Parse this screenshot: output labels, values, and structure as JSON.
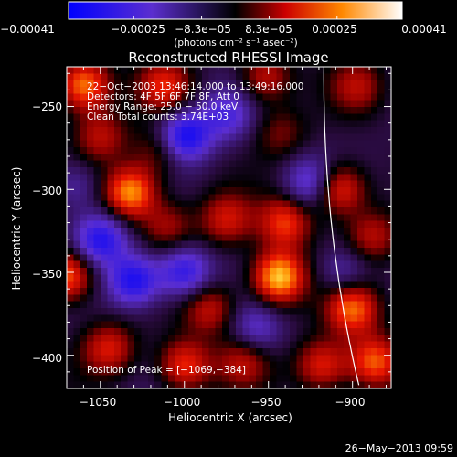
{
  "chart_data": {
    "type": "heatmap",
    "title": "Reconstructed RHESSI Image",
    "xlabel": "Heliocentric X (arcsec)",
    "ylabel": "Heliocentric Y (arcsec)",
    "xlim": [
      -1070,
      -877
    ],
    "ylim": [
      -420,
      -226
    ],
    "x_ticks": [
      -1050,
      -1000,
      -950,
      -900
    ],
    "x_tick_labels": [
      "−1050",
      "−1000",
      "−950",
      "−900"
    ],
    "y_ticks": [
      -250,
      -300,
      -350,
      -400
    ],
    "y_tick_labels": [
      "−250",
      "−300",
      "−350",
      "−400"
    ],
    "colorbar": {
      "range": [
        -0.00041,
        0.00041
      ],
      "tick_labels": [
        "−0.00041",
        "−0.00025",
        "−8.3e−05",
        "8.3e−05",
        "0.00025",
        "0.00041"
      ],
      "unit_label": "(photons cm⁻² s⁻¹ asec⁻²)",
      "colors": [
        "#0000ff",
        "#5b2ecf",
        "#000000",
        "#cc0000",
        "#ff8800",
        "#ffffff"
      ]
    },
    "info_lines": [
      "22−Oct−2003 13:46:14.000 to 13:49:16.000",
      "Detectors: 4F 5F 6F 7F 8F, Att 0",
      "Energy Range: 25.0 − 50.0 keV",
      "Clean     Total counts: 3.74E+03"
    ],
    "peak_label": "Position of Peak = [−1069,−384]",
    "limb_line": true,
    "sources": [
      {
        "x": -1060,
        "y": -237,
        "v": 0.00034
      },
      {
        "x": -1012,
        "y": -238,
        "v": 0.00022
      },
      {
        "x": -952,
        "y": -232,
        "v": 0.0002
      },
      {
        "x": -897,
        "y": -238,
        "v": 0.00016
      },
      {
        "x": -1050,
        "y": -268,
        "v": 0.00018
      },
      {
        "x": -1032,
        "y": -302,
        "v": 0.00036
      },
      {
        "x": -1015,
        "y": -277,
        "v": 0.00014
      },
      {
        "x": -943,
        "y": -266,
        "v": 0.00012
      },
      {
        "x": -975,
        "y": -318,
        "v": 0.0002
      },
      {
        "x": -940,
        "y": -320,
        "v": 0.00026
      },
      {
        "x": -908,
        "y": -300,
        "v": 0.00028
      },
      {
        "x": -888,
        "y": -328,
        "v": 0.00018
      },
      {
        "x": -1070,
        "y": -352,
        "v": 0.00032
      },
      {
        "x": -1010,
        "y": -322,
        "v": 0.00016
      },
      {
        "x": -985,
        "y": -372,
        "v": 0.0002
      },
      {
        "x": -944,
        "y": -353,
        "v": 0.00041
      },
      {
        "x": -900,
        "y": -372,
        "v": 0.0003
      },
      {
        "x": -1000,
        "y": -406,
        "v": 0.00026
      },
      {
        "x": -965,
        "y": -403,
        "v": 0.00018
      },
      {
        "x": -918,
        "y": -406,
        "v": 0.00024
      },
      {
        "x": -887,
        "y": -404,
        "v": 0.0003
      },
      {
        "x": -1045,
        "y": -396,
        "v": 0.00022
      },
      {
        "x": -1000,
        "y": -268,
        "v": -0.00032
      },
      {
        "x": -1050,
        "y": -330,
        "v": -0.00028
      },
      {
        "x": -1030,
        "y": -355,
        "v": -0.0003
      },
      {
        "x": -1000,
        "y": -350,
        "v": -0.00026
      },
      {
        "x": -975,
        "y": -255,
        "v": -0.00018
      },
      {
        "x": -925,
        "y": -296,
        "v": -0.0002
      },
      {
        "x": -958,
        "y": -385,
        "v": -0.00016
      },
      {
        "x": -1065,
        "y": -298,
        "v": -0.00012
      },
      {
        "x": -905,
        "y": -350,
        "v": -0.00014
      }
    ]
  },
  "footer": {
    "date_stamp": "26−May−2013 09:59"
  }
}
